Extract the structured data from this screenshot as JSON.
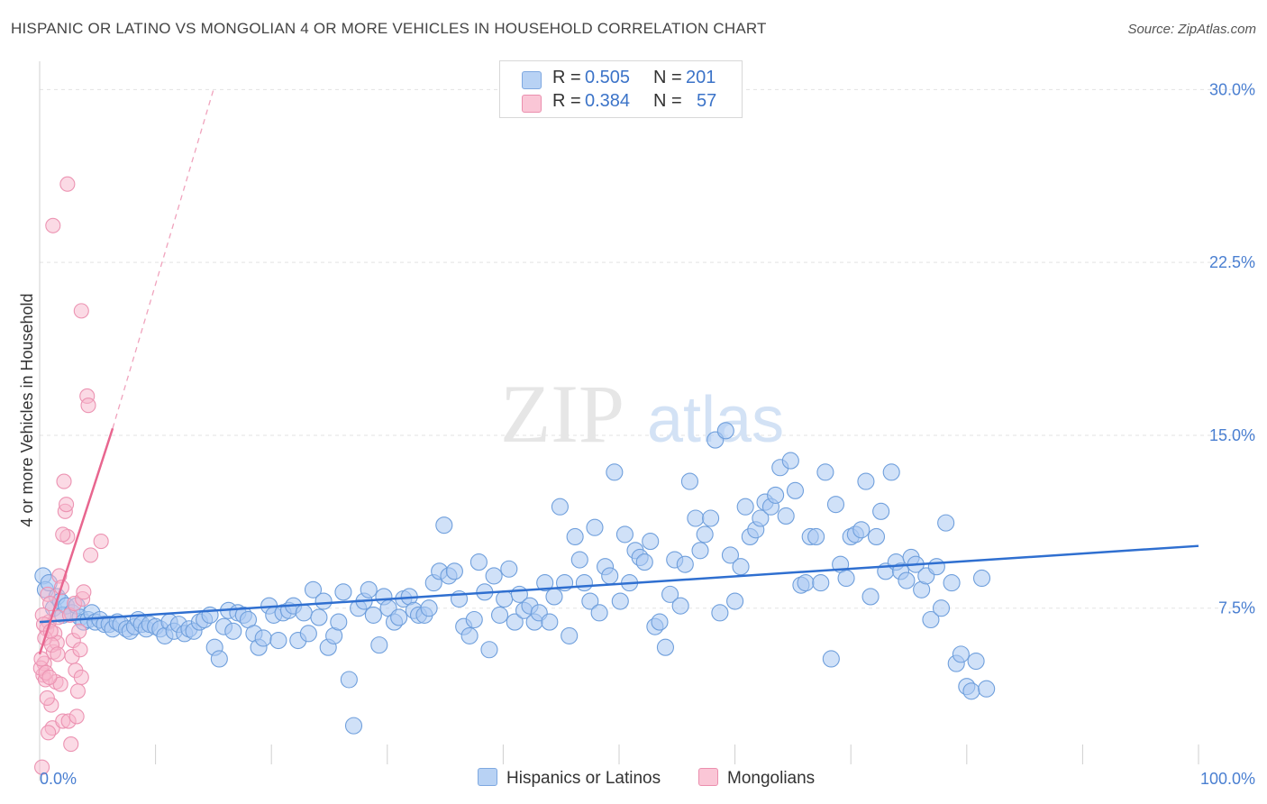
{
  "header": {
    "title": "HISPANIC OR LATINO VS MONGOLIAN 4 OR MORE VEHICLES IN HOUSEHOLD CORRELATION CHART",
    "source": "Source: ZipAtlas.com"
  },
  "watermark": {
    "zip": "ZIP",
    "atlas": "atlas"
  },
  "legend": {
    "rows": [
      {
        "r_label": "R =",
        "r_value": "0.505",
        "n_label": "N =",
        "n_value": "201",
        "color": "#a9c9f2"
      },
      {
        "r_label": "R =",
        "r_value": "0.384",
        "n_label": "N =",
        "n_value": "57",
        "color": "#f7b6cb"
      }
    ]
  },
  "bottom_legend": {
    "items": [
      {
        "label": "Hispanics or Latinos",
        "color": "#a9c9f2"
      },
      {
        "label": "Mongolians",
        "color": "#f7b6cb"
      }
    ]
  },
  "chart_data": {
    "type": "scatter",
    "title": "HISPANIC OR LATINO VS MONGOLIAN 4 OR MORE VEHICLES IN HOUSEHOLD CORRELATION CHART",
    "xlabel": "",
    "ylabel": "4 or more Vehicles in Household",
    "xlim": [
      0,
      100
    ],
    "ylim": [
      0,
      31.5
    ],
    "x_tick_labels": [
      "0.0%",
      "100.0%"
    ],
    "y_ticks": [
      7.5,
      15.0,
      22.5,
      30.0
    ],
    "y_tick_labels": [
      "7.5%",
      "15.0%",
      "22.5%",
      "30.0%"
    ],
    "grid": "horizontal dashed",
    "legend_position": "top-center",
    "colors": {
      "blue_fill": "#a9c9f2",
      "blue_line": "#2f6fd0",
      "pink_fill": "#f7b6cb",
      "pink_line": "#e8668f"
    },
    "series": [
      {
        "name": "Hispanics or Latinos",
        "color": "#a9c9f2",
        "trend": {
          "x": [
            0,
            100
          ],
          "y": [
            6.9,
            10.2
          ]
        },
        "points": [
          [
            0.3,
            8.9
          ],
          [
            0.5,
            8.3
          ],
          [
            0.8,
            8.6
          ],
          [
            1.2,
            7.5
          ],
          [
            1.5,
            8.0
          ],
          [
            1.8,
            7.8
          ],
          [
            2.0,
            7.2
          ],
          [
            2.3,
            7.6
          ],
          [
            2.8,
            7.3
          ],
          [
            3.2,
            7.6
          ],
          [
            3.5,
            7.1
          ],
          [
            3.8,
            6.9
          ],
          [
            4.2,
            7.0
          ],
          [
            4.5,
            7.3
          ],
          [
            4.8,
            6.9
          ],
          [
            5.2,
            7.0
          ],
          [
            5.6,
            6.8
          ],
          [
            6.0,
            6.8
          ],
          [
            6.3,
            6.6
          ],
          [
            6.7,
            6.9
          ],
          [
            7.0,
            6.8
          ],
          [
            7.5,
            6.6
          ],
          [
            7.8,
            6.5
          ],
          [
            8.2,
            6.7
          ],
          [
            8.5,
            7.0
          ],
          [
            8.8,
            6.8
          ],
          [
            9.2,
            6.6
          ],
          [
            9.5,
            6.8
          ],
          [
            10.0,
            6.7
          ],
          [
            10.4,
            6.6
          ],
          [
            10.8,
            6.3
          ],
          [
            11.2,
            6.9
          ],
          [
            11.6,
            6.5
          ],
          [
            12.0,
            6.8
          ],
          [
            12.5,
            6.4
          ],
          [
            12.9,
            6.6
          ],
          [
            13.3,
            6.5
          ],
          [
            13.8,
            6.9
          ],
          [
            14.2,
            7.0
          ],
          [
            14.7,
            7.2
          ],
          [
            15.1,
            5.8
          ],
          [
            15.5,
            5.3
          ],
          [
            15.9,
            6.7
          ],
          [
            16.3,
            7.4
          ],
          [
            16.7,
            6.5
          ],
          [
            17.1,
            7.3
          ],
          [
            17.6,
            7.2
          ],
          [
            18.0,
            7.0
          ],
          [
            18.5,
            6.4
          ],
          [
            18.9,
            5.8
          ],
          [
            19.3,
            6.2
          ],
          [
            19.8,
            7.6
          ],
          [
            20.2,
            7.2
          ],
          [
            20.6,
            6.1
          ],
          [
            21.0,
            7.3
          ],
          [
            21.5,
            7.4
          ],
          [
            21.9,
            7.6
          ],
          [
            22.3,
            6.1
          ],
          [
            22.8,
            7.3
          ],
          [
            23.2,
            6.4
          ],
          [
            23.6,
            8.3
          ],
          [
            24.1,
            7.1
          ],
          [
            24.5,
            7.8
          ],
          [
            24.9,
            5.8
          ],
          [
            25.4,
            6.3
          ],
          [
            25.8,
            6.9
          ],
          [
            26.2,
            8.2
          ],
          [
            26.7,
            4.4
          ],
          [
            27.1,
            2.4
          ],
          [
            27.5,
            7.5
          ],
          [
            28.0,
            7.8
          ],
          [
            28.4,
            8.3
          ],
          [
            28.8,
            7.2
          ],
          [
            29.3,
            5.9
          ],
          [
            29.7,
            8.0
          ],
          [
            30.1,
            7.5
          ],
          [
            30.6,
            6.9
          ],
          [
            31.0,
            7.1
          ],
          [
            31.4,
            7.9
          ],
          [
            31.9,
            8.0
          ],
          [
            32.3,
            7.4
          ],
          [
            32.7,
            7.2
          ],
          [
            33.2,
            7.2
          ],
          [
            33.6,
            7.5
          ],
          [
            34.0,
            8.6
          ],
          [
            34.5,
            9.1
          ],
          [
            34.9,
            11.1
          ],
          [
            35.3,
            8.9
          ],
          [
            35.8,
            9.1
          ],
          [
            36.2,
            7.9
          ],
          [
            36.6,
            6.7
          ],
          [
            37.1,
            6.3
          ],
          [
            37.5,
            7.0
          ],
          [
            37.9,
            9.5
          ],
          [
            38.4,
            8.2
          ],
          [
            38.8,
            5.7
          ],
          [
            39.2,
            8.9
          ],
          [
            39.7,
            7.2
          ],
          [
            40.1,
            7.9
          ],
          [
            40.5,
            9.2
          ],
          [
            41.0,
            6.9
          ],
          [
            41.4,
            8.1
          ],
          [
            41.8,
            7.4
          ],
          [
            42.3,
            7.6
          ],
          [
            42.7,
            6.9
          ],
          [
            43.1,
            7.3
          ],
          [
            43.6,
            8.6
          ],
          [
            44.0,
            6.9
          ],
          [
            44.4,
            8.0
          ],
          [
            44.9,
            11.9
          ],
          [
            45.3,
            8.6
          ],
          [
            45.7,
            6.3
          ],
          [
            46.2,
            10.6
          ],
          [
            46.6,
            9.6
          ],
          [
            47.0,
            8.6
          ],
          [
            47.5,
            7.8
          ],
          [
            47.9,
            11.0
          ],
          [
            48.3,
            7.3
          ],
          [
            48.8,
            9.3
          ],
          [
            49.2,
            8.9
          ],
          [
            49.6,
            13.4
          ],
          [
            50.1,
            7.8
          ],
          [
            50.5,
            10.7
          ],
          [
            50.9,
            8.6
          ],
          [
            51.4,
            10.0
          ],
          [
            51.8,
            9.7
          ],
          [
            52.2,
            9.5
          ],
          [
            52.7,
            10.4
          ],
          [
            53.1,
            6.7
          ],
          [
            53.5,
            6.9
          ],
          [
            54.0,
            5.8
          ],
          [
            54.4,
            8.1
          ],
          [
            54.8,
            9.6
          ],
          [
            55.3,
            7.6
          ],
          [
            55.7,
            9.4
          ],
          [
            56.1,
            13.0
          ],
          [
            56.6,
            11.4
          ],
          [
            57.0,
            10.0
          ],
          [
            57.4,
            10.7
          ],
          [
            57.9,
            11.4
          ],
          [
            58.3,
            14.8
          ],
          [
            58.7,
            7.3
          ],
          [
            59.2,
            15.2
          ],
          [
            59.6,
            9.8
          ],
          [
            60.0,
            7.8
          ],
          [
            60.5,
            9.3
          ],
          [
            60.9,
            11.9
          ],
          [
            61.3,
            10.6
          ],
          [
            61.8,
            10.9
          ],
          [
            62.2,
            11.4
          ],
          [
            62.6,
            12.1
          ],
          [
            63.1,
            11.9
          ],
          [
            63.5,
            12.4
          ],
          [
            63.9,
            13.6
          ],
          [
            64.4,
            11.5
          ],
          [
            64.8,
            13.9
          ],
          [
            65.2,
            12.6
          ],
          [
            65.7,
            8.5
          ],
          [
            66.1,
            8.6
          ],
          [
            66.5,
            10.6
          ],
          [
            67.0,
            10.6
          ],
          [
            67.4,
            8.6
          ],
          [
            67.8,
            13.4
          ],
          [
            68.3,
            5.3
          ],
          [
            68.7,
            12.0
          ],
          [
            69.1,
            9.4
          ],
          [
            69.6,
            8.8
          ],
          [
            70.0,
            10.6
          ],
          [
            70.4,
            10.7
          ],
          [
            70.9,
            10.9
          ],
          [
            71.3,
            13.0
          ],
          [
            71.7,
            8.0
          ],
          [
            72.2,
            10.6
          ],
          [
            72.6,
            11.7
          ],
          [
            73.0,
            9.1
          ],
          [
            73.5,
            13.4
          ],
          [
            73.9,
            9.5
          ],
          [
            74.3,
            9.1
          ],
          [
            74.8,
            8.7
          ],
          [
            75.2,
            9.7
          ],
          [
            75.6,
            9.4
          ],
          [
            76.1,
            8.3
          ],
          [
            76.5,
            8.9
          ],
          [
            76.9,
            7.0
          ],
          [
            77.4,
            9.3
          ],
          [
            77.8,
            7.5
          ],
          [
            78.2,
            11.2
          ],
          [
            78.7,
            8.6
          ],
          [
            79.1,
            5.1
          ],
          [
            79.5,
            5.5
          ],
          [
            80.0,
            4.1
          ],
          [
            80.4,
            3.9
          ],
          [
            80.8,
            5.2
          ],
          [
            81.3,
            8.8
          ],
          [
            81.7,
            4.0
          ]
        ]
      },
      {
        "name": "Mongolians",
        "color": "#f7b6cb",
        "trend": {
          "x": [
            0,
            6.3
          ],
          "y": [
            5.5,
            15.3
          ]
        },
        "trend_extension": {
          "x": [
            6.3,
            15
          ],
          "y": [
            15.3,
            30.0
          ]
        },
        "points": [
          [
            0.2,
            0.6
          ],
          [
            0.3,
            4.6
          ],
          [
            0.4,
            5.1
          ],
          [
            0.5,
            4.4
          ],
          [
            0.6,
            6.6
          ],
          [
            0.7,
            8.1
          ],
          [
            0.8,
            6.9
          ],
          [
            0.9,
            7.7
          ],
          [
            1.0,
            3.3
          ],
          [
            1.1,
            2.3
          ],
          [
            1.2,
            5.6
          ],
          [
            1.3,
            6.4
          ],
          [
            1.4,
            4.3
          ],
          [
            1.5,
            6.0
          ],
          [
            1.6,
            7.1
          ],
          [
            1.7,
            8.9
          ],
          [
            1.8,
            4.2
          ],
          [
            1.9,
            8.4
          ],
          [
            2.0,
            2.6
          ],
          [
            2.1,
            13.0
          ],
          [
            2.2,
            11.7
          ],
          [
            2.3,
            12.0
          ],
          [
            2.4,
            10.6
          ],
          [
            2.5,
            2.6
          ],
          [
            2.6,
            7.2
          ],
          [
            2.7,
            1.6
          ],
          [
            2.8,
            5.4
          ],
          [
            2.9,
            6.1
          ],
          [
            3.0,
            7.7
          ],
          [
            3.1,
            4.8
          ],
          [
            3.2,
            2.8
          ],
          [
            3.3,
            3.9
          ],
          [
            3.4,
            6.5
          ],
          [
            3.5,
            5.7
          ],
          [
            3.6,
            4.5
          ],
          [
            3.7,
            7.9
          ],
          [
            3.8,
            8.2
          ],
          [
            0.1,
            4.9
          ],
          [
            0.15,
            5.3
          ],
          [
            0.25,
            7.2
          ],
          [
            0.35,
            6.8
          ],
          [
            0.45,
            6.2
          ],
          [
            0.55,
            4.7
          ],
          [
            0.65,
            3.6
          ],
          [
            0.75,
            2.1
          ],
          [
            0.85,
            4.5
          ],
          [
            0.95,
            6.5
          ],
          [
            1.05,
            5.9
          ],
          [
            1.15,
            24.1
          ],
          [
            2.4,
            25.9
          ],
          [
            3.6,
            20.4
          ],
          [
            4.1,
            16.7
          ],
          [
            4.2,
            16.3
          ],
          [
            4.4,
            9.8
          ],
          [
            5.3,
            10.4
          ],
          [
            2.0,
            10.7
          ],
          [
            1.55,
            5.5
          ]
        ]
      }
    ]
  }
}
